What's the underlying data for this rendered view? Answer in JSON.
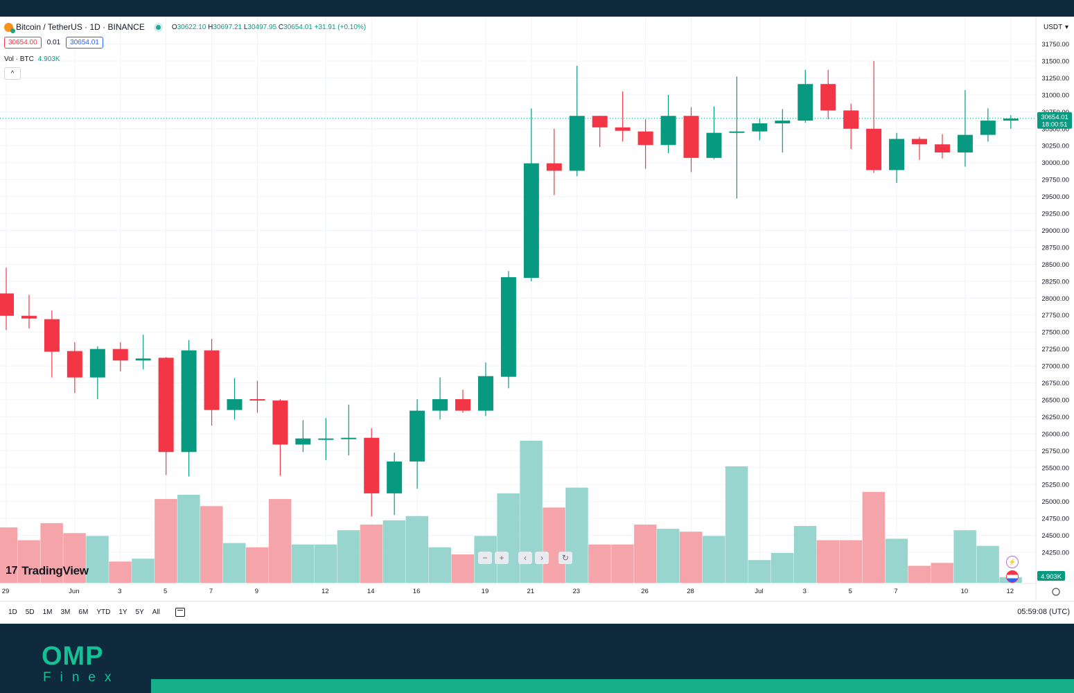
{
  "header": {
    "symbol": "Bitcoin / TetherUS · 1D · BINANCE",
    "ohlc": {
      "o_label": "O",
      "o": "30622.10",
      "h_label": "H",
      "h": "30697.21",
      "l_label": "L",
      "l": "30497.95",
      "c_label": "C",
      "c": "30654.01",
      "change": "+31.91 (+0.10%)"
    },
    "sell_price": "30654.00",
    "spread": "0.01",
    "buy_price": "30654.01",
    "vol_label": "Vol · BTC",
    "vol_value": "4.903K",
    "currency": "USDT",
    "collapse_glyph": "^"
  },
  "price_axis": {
    "last_price": "30654.01",
    "countdown": "18:00:51",
    "volume_badge": "4.903K"
  },
  "nav_controls": [
    "−",
    "+",
    "‹",
    "›",
    "↻"
  ],
  "branding": {
    "tradingview_mark": "17",
    "tradingview": "TradingView"
  },
  "bottom_bar": {
    "timeframes": [
      "1D",
      "5D",
      "1M",
      "3M",
      "6M",
      "YTD",
      "1Y",
      "5Y",
      "All"
    ],
    "clock": "05:59:08 (UTC)"
  },
  "footer": {
    "logo_main": "OMP",
    "logo_sub": "Finex"
  },
  "colors": {
    "up": "#089981",
    "down": "#f23645",
    "vol_up": "#98d5cf",
    "vol_down": "#f5a5a9",
    "brand": "#15c194",
    "dark": "#0f2a3d"
  },
  "chart_data": {
    "type": "candlestick",
    "title": "Bitcoin / TetherUS · 1D · BINANCE",
    "ylim": [
      23800,
      31950
    ],
    "y_ticks": [
      "24250.00",
      "24500.00",
      "24750.00",
      "25000.00",
      "25250.00",
      "25500.00",
      "25750.00",
      "26000.00",
      "26250.00",
      "26500.00",
      "26750.00",
      "27000.00",
      "27250.00",
      "27500.00",
      "27750.00",
      "28000.00",
      "28250.00",
      "28500.00",
      "28750.00",
      "29000.00",
      "29250.00",
      "29500.00",
      "29750.00",
      "30000.00",
      "30250.00",
      "30500.00",
      "30750.00",
      "31000.00",
      "31250.00",
      "31500.00",
      "31750.00"
    ],
    "x_tick_labels": [
      {
        "i": 0,
        "label": "29"
      },
      {
        "i": 3,
        "label": "Jun"
      },
      {
        "i": 5,
        "label": "3"
      },
      {
        "i": 7,
        "label": "5"
      },
      {
        "i": 9,
        "label": "7"
      },
      {
        "i": 11,
        "label": "9"
      },
      {
        "i": 14,
        "label": "12"
      },
      {
        "i": 16,
        "label": "14"
      },
      {
        "i": 18,
        "label": "16"
      },
      {
        "i": 21,
        "label": "19"
      },
      {
        "i": 23,
        "label": "21"
      },
      {
        "i": 25,
        "label": "23"
      },
      {
        "i": 28,
        "label": "26"
      },
      {
        "i": 30,
        "label": "28"
      },
      {
        "i": 33,
        "label": "Jul"
      },
      {
        "i": 35,
        "label": "3"
      },
      {
        "i": 37,
        "label": "5"
      },
      {
        "i": 39,
        "label": "7"
      },
      {
        "i": 42,
        "label": "10"
      },
      {
        "i": 44,
        "label": "12"
      }
    ],
    "candles": [
      {
        "o": 28070,
        "h": 28450,
        "l": 27530,
        "c": 27740
      },
      {
        "o": 27740,
        "h": 28050,
        "l": 27550,
        "c": 27700
      },
      {
        "o": 27690,
        "h": 27820,
        "l": 26830,
        "c": 27210
      },
      {
        "o": 27220,
        "h": 27350,
        "l": 26600,
        "c": 26830
      },
      {
        "o": 26830,
        "h": 27290,
        "l": 26510,
        "c": 27250
      },
      {
        "o": 27250,
        "h": 27350,
        "l": 26920,
        "c": 27080
      },
      {
        "o": 27080,
        "h": 27460,
        "l": 26950,
        "c": 27110
      },
      {
        "o": 27120,
        "h": 27130,
        "l": 25390,
        "c": 25730
      },
      {
        "o": 25730,
        "h": 27380,
        "l": 25370,
        "c": 27230
      },
      {
        "o": 27230,
        "h": 27400,
        "l": 26120,
        "c": 26350
      },
      {
        "o": 26350,
        "h": 26820,
        "l": 26210,
        "c": 26510
      },
      {
        "o": 26510,
        "h": 26780,
        "l": 26310,
        "c": 26490
      },
      {
        "o": 26490,
        "h": 26510,
        "l": 25380,
        "c": 25840
      },
      {
        "o": 25840,
        "h": 26200,
        "l": 25730,
        "c": 25930
      },
      {
        "o": 25920,
        "h": 26230,
        "l": 25610,
        "c": 25930
      },
      {
        "o": 25920,
        "h": 26430,
        "l": 25680,
        "c": 25940
      },
      {
        "o": 25940,
        "h": 26080,
        "l": 24780,
        "c": 25120
      },
      {
        "o": 25120,
        "h": 25720,
        "l": 24800,
        "c": 25590
      },
      {
        "o": 25590,
        "h": 26510,
        "l": 25190,
        "c": 26340
      },
      {
        "o": 26340,
        "h": 26830,
        "l": 26210,
        "c": 26510
      },
      {
        "o": 26510,
        "h": 26650,
        "l": 26310,
        "c": 26340
      },
      {
        "o": 26340,
        "h": 27050,
        "l": 26260,
        "c": 26850
      },
      {
        "o": 26840,
        "h": 28400,
        "l": 26670,
        "c": 28310
      },
      {
        "o": 28300,
        "h": 30800,
        "l": 28250,
        "c": 29990
      },
      {
        "o": 29990,
        "h": 30500,
        "l": 29520,
        "c": 29880
      },
      {
        "o": 29880,
        "h": 31430,
        "l": 29800,
        "c": 30690
      },
      {
        "o": 30690,
        "h": 30690,
        "l": 30230,
        "c": 30520
      },
      {
        "o": 30520,
        "h": 31050,
        "l": 30310,
        "c": 30470
      },
      {
        "o": 30460,
        "h": 30640,
        "l": 29910,
        "c": 30260
      },
      {
        "o": 30260,
        "h": 31000,
        "l": 30140,
        "c": 30690
      },
      {
        "o": 30690,
        "h": 30820,
        "l": 29860,
        "c": 30070
      },
      {
        "o": 30070,
        "h": 30830,
        "l": 30050,
        "c": 30440
      },
      {
        "o": 30440,
        "h": 31270,
        "l": 29470,
        "c": 30460
      },
      {
        "o": 30460,
        "h": 30650,
        "l": 30330,
        "c": 30580
      },
      {
        "o": 30580,
        "h": 30790,
        "l": 30150,
        "c": 30620
      },
      {
        "o": 30620,
        "h": 31370,
        "l": 30590,
        "c": 31160
      },
      {
        "o": 31160,
        "h": 31370,
        "l": 30640,
        "c": 30770
      },
      {
        "o": 30770,
        "h": 30870,
        "l": 30200,
        "c": 30500
      },
      {
        "o": 30500,
        "h": 31500,
        "l": 29850,
        "c": 29890
      },
      {
        "o": 29890,
        "h": 30440,
        "l": 29700,
        "c": 30350
      },
      {
        "o": 30350,
        "h": 30380,
        "l": 30040,
        "c": 30270
      },
      {
        "o": 30270,
        "h": 30420,
        "l": 30060,
        "c": 30150
      },
      {
        "o": 30150,
        "h": 31070,
        "l": 29940,
        "c": 30410
      },
      {
        "o": 30410,
        "h": 30800,
        "l": 30310,
        "c": 30620
      },
      {
        "o": 30620,
        "h": 30700,
        "l": 30500,
        "c": 30650
      }
    ],
    "volume": {
      "max_ratio_note": "relative heights",
      "values": [
        0.39,
        0.3,
        0.42,
        0.35,
        0.33,
        0.15,
        0.17,
        0.59,
        0.62,
        0.54,
        0.28,
        0.25,
        0.59,
        0.27,
        0.27,
        0.37,
        0.41,
        0.44,
        0.47,
        0.25,
        0.2,
        0.33,
        0.63,
        1.0,
        0.53,
        0.67,
        0.27,
        0.27,
        0.41,
        0.38,
        0.36,
        0.33,
        0.82,
        0.16,
        0.21,
        0.4,
        0.3,
        0.3,
        0.64,
        0.31,
        0.12,
        0.14,
        0.37,
        0.26,
        0.04
      ]
    }
  }
}
